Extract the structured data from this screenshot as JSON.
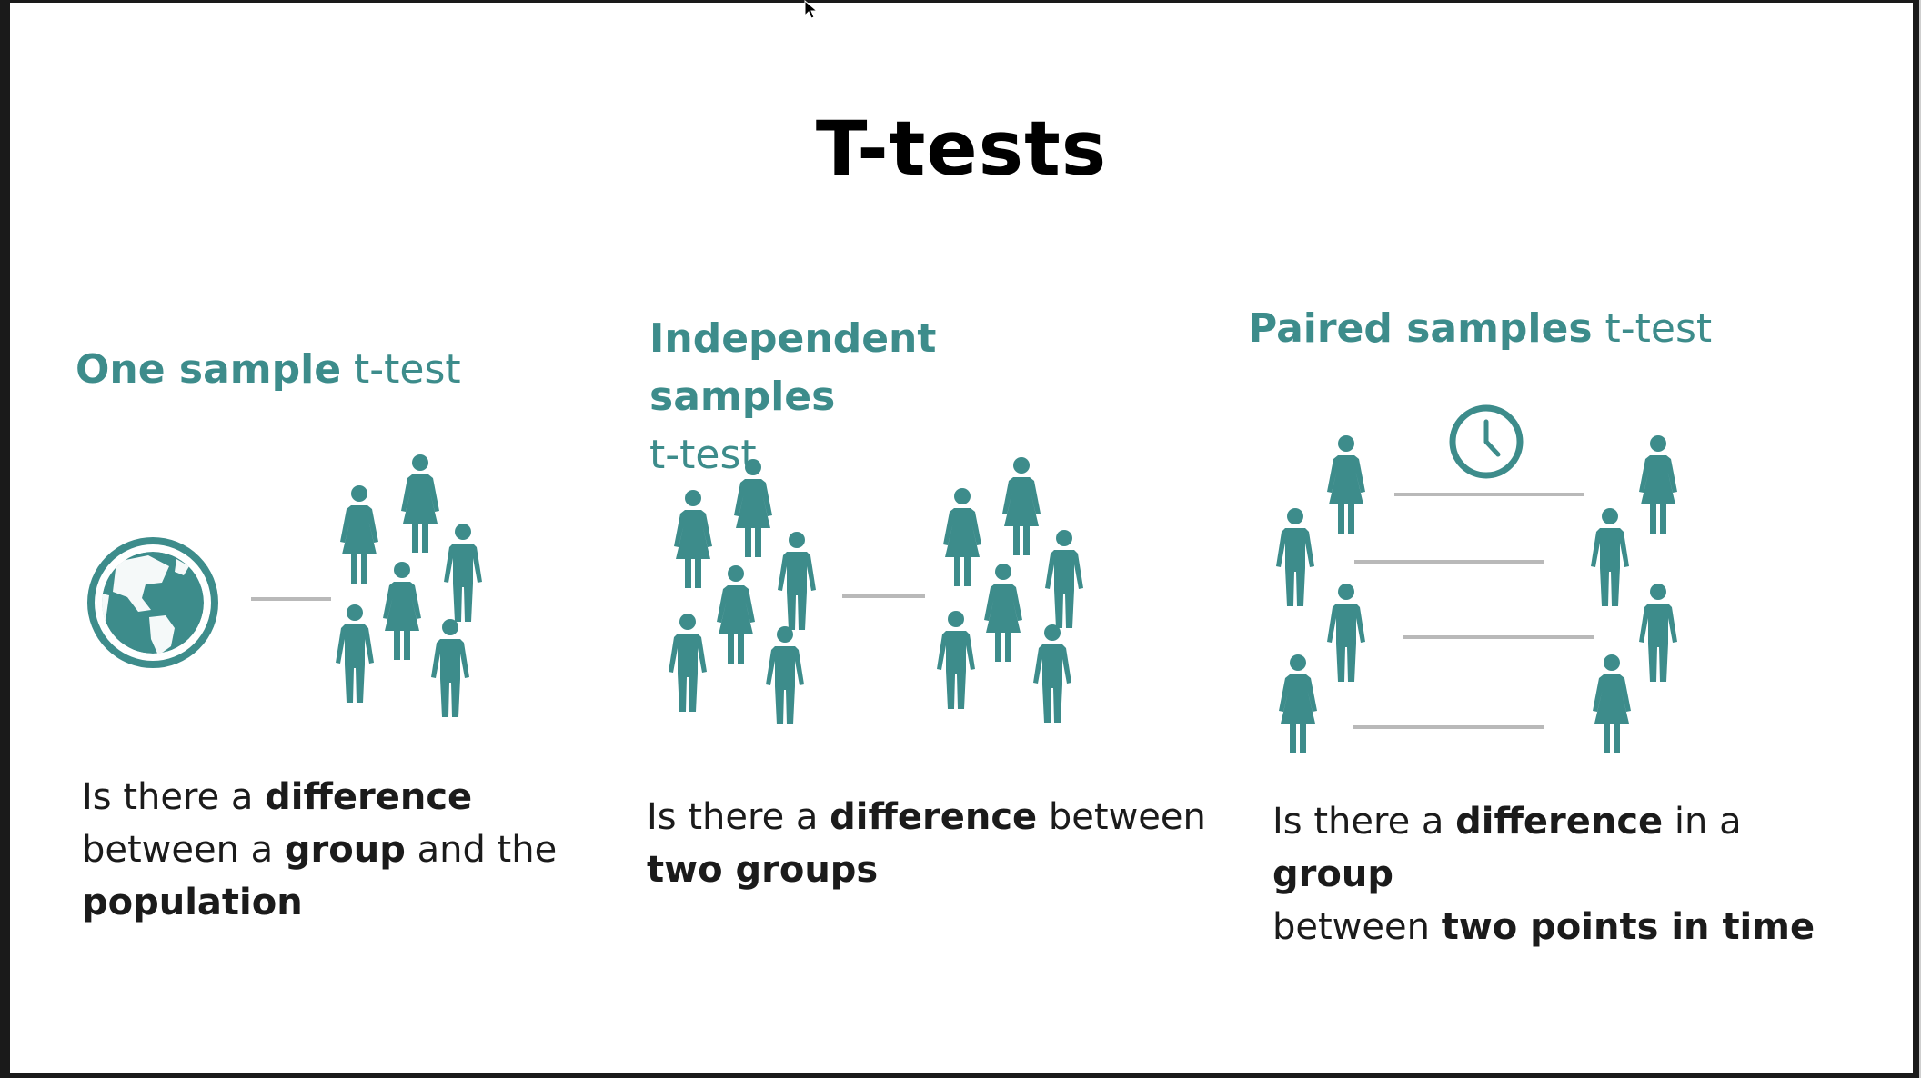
{
  "slide": {
    "title": "T-tests",
    "accent_color": "#3d8c8b",
    "connector_color": "#b9b9b9"
  },
  "columns": [
    {
      "heading_bold": "One sample",
      "heading_normal": "t-test",
      "desc": [
        {
          "t": "Is there a ",
          "b": false
        },
        {
          "t": "difference",
          "b": true
        },
        {
          "t": " between a ",
          "b": false
        },
        {
          "t": "group",
          "b": true
        },
        {
          "t": " and the ",
          "b": false
        },
        {
          "t": "population",
          "b": true
        }
      ],
      "icons": [
        "globe-icon",
        "group-of-people-icon"
      ]
    },
    {
      "heading_bold": "Independent samples",
      "heading_normal": "t-test",
      "desc": [
        {
          "t": "Is there a ",
          "b": false
        },
        {
          "t": "difference",
          "b": true
        },
        {
          "t": " between ",
          "b": false
        },
        {
          "t": "two groups",
          "b": true
        }
      ],
      "icons": [
        "group-of-people-icon",
        "group-of-people-icon"
      ]
    },
    {
      "heading_bold": "Paired samples",
      "heading_normal": "t-test",
      "desc": [
        {
          "t": "Is there a ",
          "b": false
        },
        {
          "t": "difference",
          "b": true
        },
        {
          "t": " in a ",
          "b": false
        },
        {
          "t": "group",
          "b": true
        },
        {
          "t": " between ",
          "b": false
        },
        {
          "t": "two points in time",
          "b": true
        }
      ],
      "icons": [
        "clock-icon",
        "paired-people-icon"
      ]
    }
  ]
}
